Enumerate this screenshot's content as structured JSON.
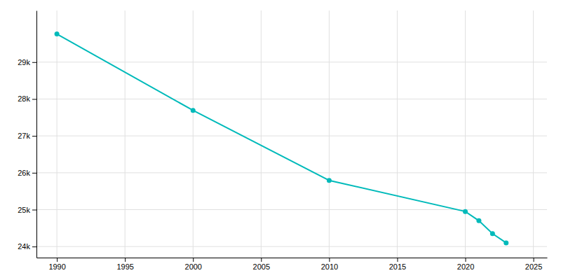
{
  "chart_data": {
    "type": "line",
    "x": [
      1990,
      2000,
      2010,
      2020,
      2021,
      2022,
      2023
    ],
    "values": [
      29764,
      27691,
      25793,
      24950,
      24700,
      24350,
      24100
    ],
    "color": "#00BABA",
    "marker": "circle",
    "xlim": [
      1988.5,
      2026
    ],
    "xticks": [
      1990,
      1995,
      2000,
      2005,
      2010,
      2015,
      2020,
      2025
    ],
    "ylim": [
      23700,
      30400
    ],
    "yticks": [
      {
        "value": 24000,
        "label": "24k"
      },
      {
        "value": 25000,
        "label": "25k"
      },
      {
        "value": 26000,
        "label": "26k"
      },
      {
        "value": 27000,
        "label": "27k"
      },
      {
        "value": 28000,
        "label": "28k"
      },
      {
        "value": 29000,
        "label": "29k"
      }
    ],
    "grid": true
  }
}
